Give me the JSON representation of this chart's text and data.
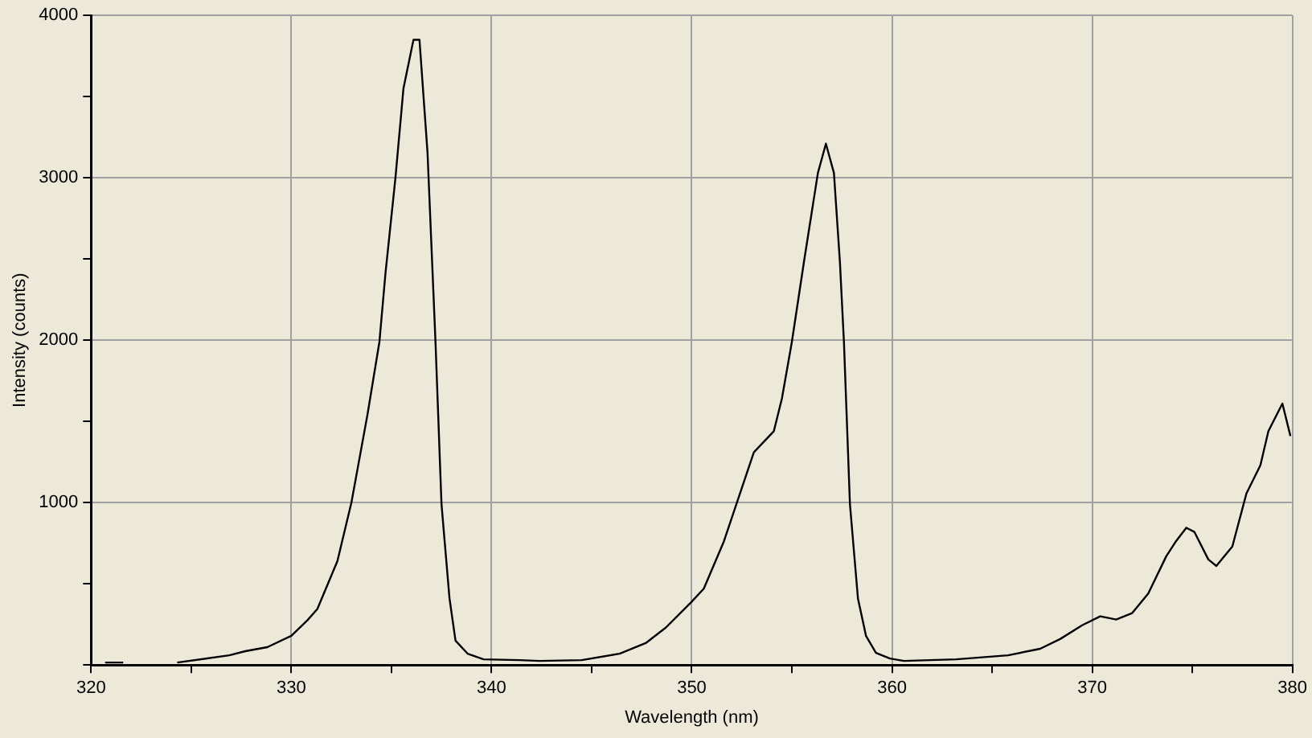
{
  "chart_data": {
    "type": "line",
    "xlabel": "Wavelength (nm)",
    "ylabel": "Intensity (counts)",
    "xlim": [
      320,
      380
    ],
    "ylim": [
      0,
      4000
    ],
    "xticks": [
      320,
      {
        "value": 325,
        "label": null
      },
      330,
      {
        "value": 335,
        "label": null
      },
      340,
      {
        "value": 345,
        "label": null
      },
      350,
      {
        "value": 355,
        "label": null
      },
      360,
      {
        "value": 365,
        "label": null
      },
      370,
      {
        "value": 375,
        "label": null
      },
      380
    ],
    "yticks": [
      {
        "value": 0,
        "label": null
      },
      {
        "value": 500,
        "label": null
      },
      1000,
      {
        "value": 1500,
        "label": null
      },
      2000,
      {
        "value": 2500,
        "label": null
      },
      3000,
      {
        "value": 3500,
        "label": null
      },
      4000
    ],
    "grid": true,
    "legend": false,
    "marker": "none",
    "line_style": "solid",
    "series": [
      {
        "color": "#000000",
        "x": [
          320.7,
          321.6,
          322.5,
          324.3,
          326.9,
          327.7,
          328.8,
          330.0,
          330.8,
          331.3,
          332.3,
          333.0,
          333.8,
          334.4,
          334.7,
          335.2,
          335.6,
          336.1,
          336.4,
          336.8,
          337.2,
          337.5,
          337.9,
          338.2,
          338.8,
          339.6,
          341.4,
          342.4,
          344.5,
          346.4,
          347.7,
          348.7,
          350.0,
          350.6,
          351.6,
          353.1,
          354.1,
          354.5,
          355.0,
          355.6,
          356.3,
          356.7,
          357.1,
          357.4,
          357.6,
          357.9,
          358.3,
          358.7,
          359.2,
          359.9,
          360.6,
          361.9,
          363.2,
          365.8,
          367.4,
          368.4,
          369.5,
          370.4,
          371.2,
          372.0,
          372.8,
          373.7,
          374.2,
          374.7,
          375.1,
          375.8,
          376.2,
          377.0,
          377.7,
          378.4,
          378.8,
          379.5,
          379.9
        ],
        "values": [
          15,
          15,
          null,
          15,
          60,
          85,
          110,
          180,
          275,
          345,
          640,
          1000,
          1540,
          1990,
          2410,
          3000,
          3550,
          3850,
          3850,
          3160,
          1990,
          990,
          410,
          150,
          70,
          35,
          30,
          25,
          30,
          70,
          135,
          230,
          390,
          470,
          760,
          1310,
          1440,
          1640,
          1990,
          2480,
          3030,
          3210,
          3030,
          2480,
          1990,
          990,
          410,
          180,
          75,
          40,
          25,
          30,
          35,
          60,
          100,
          160,
          245,
          300,
          280,
          320,
          440,
          670,
          765,
          845,
          820,
          650,
          610,
          730,
          1055,
          1230,
          1440,
          1610,
          1410
        ]
      }
    ]
  }
}
